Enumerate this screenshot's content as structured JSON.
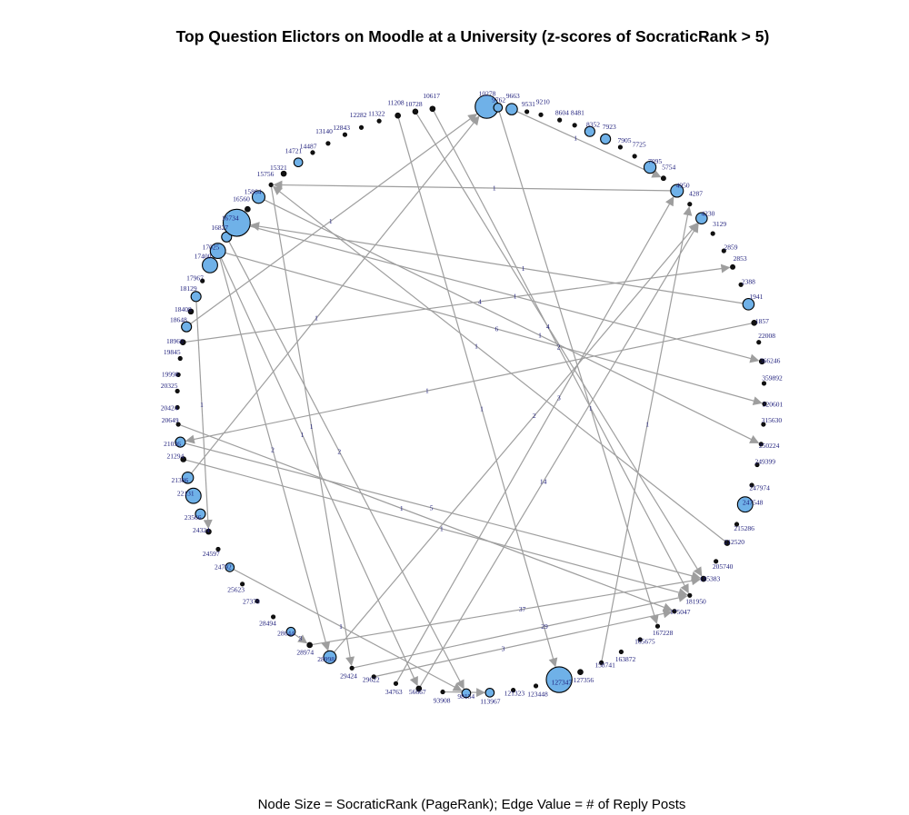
{
  "chart_data": {
    "type": "network",
    "layout": "circle",
    "title": "Top Question Elictors on Moodle at a University (z-scores of SocraticRank > 5)",
    "caption": "Node Size = SocraticRank (PageRank); Edge Value = # of Reply Posts",
    "colors": {
      "node_fill": "#6fb1e8",
      "node_stroke": "#000000",
      "edge": "#9e9e9e",
      "label": "#1c1c7a"
    },
    "nodes": [
      {
        "id": "10278",
        "angle": 86.9,
        "size": 3.2
      },
      {
        "id": "9762",
        "angle": 84.7,
        "size": 1.0
      },
      {
        "id": "9663",
        "angle": 82.0,
        "size": 1.4
      },
      {
        "id": "9531",
        "angle": 79.0,
        "size": 0.3
      },
      {
        "id": "9210",
        "angle": 76.2,
        "size": 0.3
      },
      {
        "id": "8604",
        "angle": 72.4,
        "size": 0.3
      },
      {
        "id": "8481",
        "angle": 69.3,
        "size": 0.3
      },
      {
        "id": "8352",
        "angle": 66.1,
        "size": 1.2
      },
      {
        "id": "7923",
        "angle": 62.7,
        "size": 1.2
      },
      {
        "id": "7905",
        "angle": 59.4,
        "size": 0.3
      },
      {
        "id": "7725",
        "angle": 56.1,
        "size": 0.3
      },
      {
        "id": "7095",
        "angle": 52.4,
        "size": 1.5
      },
      {
        "id": "5754",
        "angle": 49.0,
        "size": 0.4
      },
      {
        "id": "4950",
        "angle": 45.4,
        "size": 1.6
      },
      {
        "id": "4287",
        "angle": 41.8,
        "size": 0.3
      },
      {
        "id": "4230",
        "angle": 38.2,
        "size": 1.4
      },
      {
        "id": "3129",
        "angle": 34.5,
        "size": 0.3
      },
      {
        "id": "2859",
        "angle": 30.5,
        "size": 0.3
      },
      {
        "id": "2853",
        "angle": 26.9,
        "size": 0.4
      },
      {
        "id": "2388",
        "angle": 23.1,
        "size": 0.3
      },
      {
        "id": "1941",
        "angle": 19.0,
        "size": 1.4
      },
      {
        "id": "1857",
        "angle": 15.2,
        "size": 0.5
      },
      {
        "id": "22008",
        "angle": 11.3,
        "size": 0.3
      },
      {
        "id": "366246",
        "angle": 7.5,
        "size": 0.5
      },
      {
        "id": "359892",
        "angle": 3.2,
        "size": 0.3
      },
      {
        "id": "320601",
        "angle": -0.8,
        "size": 0.3
      },
      {
        "id": "315630",
        "angle": -4.8,
        "size": 0.3
      },
      {
        "id": "250224",
        "angle": -8.7,
        "size": 0.3
      },
      {
        "id": "249399",
        "angle": -12.8,
        "size": 0.3
      },
      {
        "id": "247974",
        "angle": -16.9,
        "size": 0.3
      },
      {
        "id": "247548",
        "angle": -20.9,
        "size": 2.0
      },
      {
        "id": "215286",
        "angle": -25.1,
        "size": 0.3
      },
      {
        "id": "212520",
        "angle": -29.2,
        "size": 0.5
      },
      {
        "id": "205740",
        "angle": -33.4,
        "size": 0.3
      },
      {
        "id": "185383",
        "angle": -37.6,
        "size": 0.5
      },
      {
        "id": "181950",
        "angle": -41.8,
        "size": 0.3
      },
      {
        "id": "175047",
        "angle": -46.1,
        "size": 0.3
      },
      {
        "id": "167228",
        "angle": -50.5,
        "size": 0.3
      },
      {
        "id": "165675",
        "angle": -54.8,
        "size": 0.3
      },
      {
        "id": "163872",
        "angle": -59.2,
        "size": 0.3
      },
      {
        "id": "158741",
        "angle": -63.6,
        "size": 0.3
      },
      {
        "id": "127356",
        "angle": -68.1,
        "size": 0.5
      },
      {
        "id": "127347",
        "angle": -72.5,
        "size": 3.6
      },
      {
        "id": "123448",
        "angle": -77.2,
        "size": 0.3
      },
      {
        "id": "121323",
        "angle": -81.7,
        "size": 0.3
      },
      {
        "id": "113967",
        "angle": -86.3,
        "size": 1.0
      },
      {
        "id": "98154",
        "angle": -90.9,
        "size": 1.0
      },
      {
        "id": "93908",
        "angle": -95.5,
        "size": 0.3
      },
      {
        "id": "56667",
        "angle": -100.2,
        "size": 0.5
      },
      {
        "id": "34763",
        "angle": -104.8,
        "size": 0.3
      },
      {
        "id": "29622",
        "angle": -109.3,
        "size": 0.3
      },
      {
        "id": "29424",
        "angle": -113.9,
        "size": 0.3
      },
      {
        "id": "28998",
        "angle": -118.7,
        "size": 1.6
      },
      {
        "id": "28974",
        "angle": -123.3,
        "size": 0.5
      },
      {
        "id": "28644",
        "angle": -127.8,
        "size": 1.0
      },
      {
        "id": "28494",
        "angle": -132.3,
        "size": 0.3
      },
      {
        "id": "27378",
        "angle": -136.7,
        "size": 0.3
      },
      {
        "id": "25623",
        "angle": -141.1,
        "size": 0.3
      },
      {
        "id": "24792",
        "angle": -145.2,
        "size": 1.0
      },
      {
        "id": "24597",
        "angle": -149.4,
        "size": 0.3
      },
      {
        "id": "24324",
        "angle": -153.3,
        "size": 0.5
      },
      {
        "id": "23566",
        "angle": -157.1,
        "size": 1.2
      },
      {
        "id": "22131",
        "angle": -160.9,
        "size": 2.0
      },
      {
        "id": "21306",
        "angle": -164.6,
        "size": 1.4
      },
      {
        "id": "21294",
        "angle": -168.3,
        "size": 0.5
      },
      {
        "id": "21036",
        "angle": -171.7,
        "size": 1.2
      },
      {
        "id": "20649",
        "angle": -175.2,
        "size": 0.3
      },
      {
        "id": "20424",
        "angle": -178.5,
        "size": 0.3
      },
      {
        "id": "20325",
        "angle": 178.3,
        "size": 0.3
      },
      {
        "id": "19998",
        "angle": 175.1,
        "size": 0.3
      },
      {
        "id": "19845",
        "angle": 171.9,
        "size": 0.3
      },
      {
        "id": "18960",
        "angle": 168.7,
        "size": 0.5
      },
      {
        "id": "18648",
        "angle": 165.6,
        "size": 1.2
      },
      {
        "id": "18408",
        "angle": 162.5,
        "size": 0.5
      },
      {
        "id": "18129",
        "angle": 159.4,
        "size": 1.2
      },
      {
        "id": "17967",
        "angle": 156.1,
        "size": 0.3
      },
      {
        "id": "17400",
        "angle": 152.7,
        "size": 2.0
      },
      {
        "id": "17025",
        "angle": 149.5,
        "size": 2.0
      },
      {
        "id": "16827",
        "angle": 146.3,
        "size": 1.2
      },
      {
        "id": "16734",
        "angle": 142.9,
        "size": 3.8
      },
      {
        "id": "16560",
        "angle": 139.5,
        "size": 0.5
      },
      {
        "id": "15864",
        "angle": 136.3,
        "size": 1.6
      },
      {
        "id": "15756",
        "angle": 132.9,
        "size": 0.3
      },
      {
        "id": "15321",
        "angle": 129.6,
        "size": 0.5
      },
      {
        "id": "14721",
        "angle": 126.0,
        "size": 1.0
      },
      {
        "id": "14487",
        "angle": 122.6,
        "size": 0.3
      },
      {
        "id": "13140",
        "angle": 119.1,
        "size": 0.3
      },
      {
        "id": "12843",
        "angle": 115.4,
        "size": 0.3
      },
      {
        "id": "12282",
        "angle": 111.9,
        "size": 0.3
      },
      {
        "id": "11322",
        "angle": 108.2,
        "size": 0.3
      },
      {
        "id": "11208",
        "angle": 104.4,
        "size": 0.5
      },
      {
        "id": "10728",
        "angle": 100.9,
        "size": 0.5
      },
      {
        "id": "10617",
        "angle": 97.5,
        "size": 0.5
      }
    ],
    "edges": [
      {
        "source": "9663",
        "target": "5754",
        "value": 1
      },
      {
        "source": "4950",
        "target": "15756",
        "value": 1
      },
      {
        "source": "18648",
        "target": "10278",
        "value": 1
      },
      {
        "source": "17025",
        "target": "320601",
        "value": 6
      },
      {
        "source": "18960",
        "target": "2853",
        "value": 4
      },
      {
        "source": "1857",
        "target": "21036",
        "value": 1
      },
      {
        "source": "21306",
        "target": "10278",
        "value": 1
      },
      {
        "source": "10728",
        "target": "185383",
        "value": 4
      },
      {
        "source": "10617",
        "target": "181950",
        "value": 2
      },
      {
        "source": "11208",
        "target": "127347",
        "value": 1
      },
      {
        "source": "28998",
        "target": "4230",
        "value": 2
      },
      {
        "source": "34763",
        "target": "4950",
        "value": 3
      },
      {
        "source": "56667",
        "target": "4230",
        "value": 14
      },
      {
        "source": "16827",
        "target": "98154",
        "value": 2
      },
      {
        "source": "15756",
        "target": "29424",
        "value": 1
      },
      {
        "source": "16734",
        "target": "366246",
        "value": 1
      },
      {
        "source": "15864",
        "target": "250224",
        "value": 1
      },
      {
        "source": "17025",
        "target": "56667",
        "value": 1
      },
      {
        "source": "20649",
        "target": "175047",
        "value": 1
      },
      {
        "source": "21036",
        "target": "185383",
        "value": 5
      },
      {
        "source": "21294",
        "target": "181950",
        "value": 1
      },
      {
        "source": "28974",
        "target": "185383",
        "value": 37
      },
      {
        "source": "29424",
        "target": "181950",
        "value": 29
      },
      {
        "source": "29622",
        "target": "175047",
        "value": 3
      },
      {
        "source": "18129",
        "target": "24324",
        "value": 1
      },
      {
        "source": "17025",
        "target": "28998",
        "value": 2
      },
      {
        "source": "158741",
        "target": "4287",
        "value": 1
      },
      {
        "source": "212520",
        "target": "15756",
        "value": 1
      },
      {
        "source": "9762",
        "target": "167228",
        "value": 1
      },
      {
        "source": "1941",
        "target": "16734",
        "value": 1
      },
      {
        "source": "24792",
        "target": "98154",
        "value": 1
      },
      {
        "source": "28644",
        "target": "28974",
        "value": 3
      },
      {
        "source": "93908",
        "target": "113967",
        "value": 1
      }
    ]
  }
}
